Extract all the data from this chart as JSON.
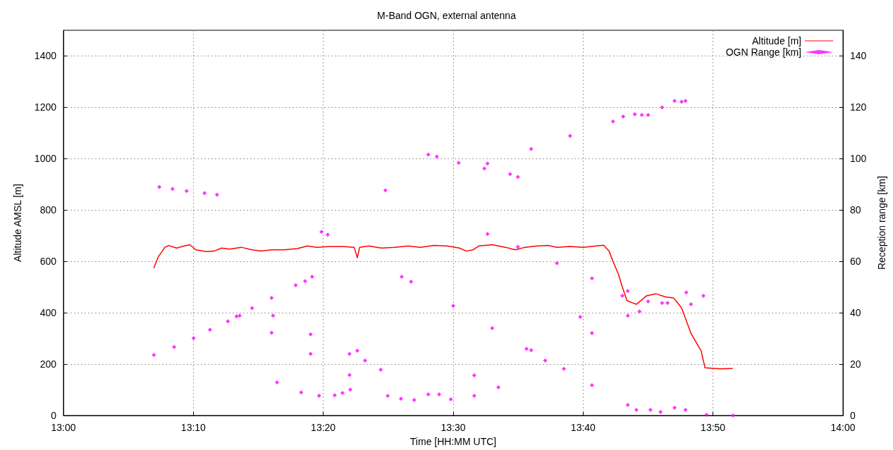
{
  "chart_data": {
    "type": "line",
    "title": "M-Band OGN, external antenna",
    "xlabel": "Time [HH:MM UTC]",
    "ylabel": "Altitude AMSL [m]",
    "y2label": "Reception range [km]",
    "xlim": [
      13,
      14
    ],
    "xticks": [
      {
        "value": 13,
        "label": "13:00"
      },
      {
        "value": 13.1667,
        "label": "13:10"
      },
      {
        "value": 13.3333,
        "label": "13:20"
      },
      {
        "value": 13.5,
        "label": "13:30"
      },
      {
        "value": 13.6667,
        "label": "13:40"
      },
      {
        "value": 13.8333,
        "label": "13:50"
      },
      {
        "value": 14,
        "label": "14:00"
      }
    ],
    "ylim": [
      0,
      1500
    ],
    "yticks": [
      0,
      200,
      400,
      600,
      800,
      1000,
      1200,
      1400
    ],
    "y2lim": [
      0,
      150
    ],
    "y2ticks": [
      0,
      20,
      40,
      60,
      80,
      100,
      120,
      140
    ],
    "grid": true,
    "legend": "top right",
    "marker": "diamond",
    "series": [
      {
        "name": "Altitude [m]",
        "marker": "none",
        "color": "#ff0000",
        "x": [
          13.116,
          13.122,
          13.127,
          13.13,
          13.135,
          13.145,
          13.155,
          13.162,
          13.17,
          13.183,
          13.193,
          13.203,
          13.213,
          13.228,
          13.242,
          13.253,
          13.267,
          13.283,
          13.3,
          13.313,
          13.325,
          13.342,
          13.358,
          13.373,
          13.377,
          13.38,
          13.392,
          13.408,
          13.425,
          13.442,
          13.458,
          13.475,
          13.492,
          13.508,
          13.517,
          13.525,
          13.533,
          13.55,
          13.567,
          13.58,
          13.592,
          13.608,
          13.622,
          13.633,
          13.65,
          13.667,
          13.683,
          13.693,
          13.7,
          13.705,
          13.712,
          13.717,
          13.723,
          13.735,
          13.748,
          13.76,
          13.772,
          13.783,
          13.793,
          13.805,
          13.818,
          13.823,
          13.842,
          13.858
        ],
        "values": [
          575,
          620,
          640,
          655,
          662,
          652,
          660,
          665,
          645,
          638,
          640,
          652,
          648,
          655,
          645,
          640,
          645,
          645,
          650,
          660,
          655,
          658,
          658,
          655,
          614,
          655,
          660,
          652,
          655,
          660,
          655,
          662,
          660,
          652,
          640,
          645,
          660,
          665,
          655,
          645,
          655,
          660,
          662,
          655,
          658,
          655,
          660,
          663,
          640,
          600,
          550,
          500,
          447,
          433,
          466,
          474,
          462,
          457,
          419,
          320,
          252,
          186,
          182,
          183
        ]
      },
      {
        "name": "OGN Range [km]",
        "type": "scatter",
        "axis": "y2",
        "color": "#ff00ff",
        "x": [
          13.123,
          13.14,
          13.158,
          13.181,
          13.197,
          13.116,
          13.142,
          13.167,
          13.188,
          13.211,
          13.222,
          13.242,
          13.267,
          13.298,
          13.31,
          13.319,
          13.226,
          13.267,
          13.317,
          13.367,
          13.416,
          13.433,
          13.45,
          13.482,
          13.527,
          13.594,
          13.663,
          13.717,
          13.269,
          13.317,
          13.367,
          13.407,
          13.468,
          13.497,
          13.527,
          13.558,
          13.618,
          13.678,
          13.724,
          13.739,
          13.768,
          13.799,
          13.821,
          13.544,
          13.583,
          13.633,
          13.678,
          13.724,
          13.75,
          13.775,
          13.805,
          13.434,
          13.446,
          13.5,
          13.55,
          13.6,
          13.642,
          13.678,
          13.724,
          13.735,
          13.753,
          13.766,
          13.784,
          13.798,
          13.825,
          13.859,
          13.274,
          13.305,
          13.328,
          13.348,
          13.358,
          13.368,
          13.331,
          13.339,
          13.413,
          13.377,
          13.387,
          13.468,
          13.479,
          13.507,
          13.54,
          13.573,
          13.583,
          13.544,
          13.6,
          13.65,
          13.705,
          13.718,
          13.733,
          13.742,
          13.75,
          13.768,
          13.784,
          13.793,
          13.798
        ],
        "values": [
          89.0,
          88.2,
          87.4,
          86.6,
          86.0,
          23.6,
          26.7,
          30.1,
          33.4,
          36.7,
          38.6,
          41.8,
          45.8,
          50.7,
          52.3,
          54.0,
          38.9,
          32.2,
          24.0,
          15.8,
          7.7,
          6.5,
          6.0,
          8.2,
          15.6,
          26.0,
          38.4,
          46.6,
          38.9,
          31.6,
          24.0,
          17.8,
          8.2,
          6.3,
          7.7,
          11.0,
          21.4,
          32.1,
          38.9,
          40.5,
          43.8,
          47.9,
          46.6,
          70.7,
          65.7,
          59.3,
          53.4,
          48.5,
          44.4,
          43.8,
          43.3,
          54.0,
          52.1,
          42.7,
          34.0,
          25.4,
          18.2,
          11.8,
          4.1,
          2.2,
          2.2,
          1.4,
          3.0,
          2.2,
          0.3,
          0,
          12.9,
          9.0,
          7.7,
          7.9,
          8.8,
          10.1,
          71.5,
          70.4,
          87.7,
          25.2,
          21.4,
          101.6,
          100.8,
          98.4,
          96.2,
          94.0,
          92.9,
          98.1,
          103.8,
          108.9,
          114.5,
          116.4,
          117.3,
          117.0,
          117.0,
          120.0,
          122.5,
          122.2,
          122.5
        ]
      }
    ]
  }
}
